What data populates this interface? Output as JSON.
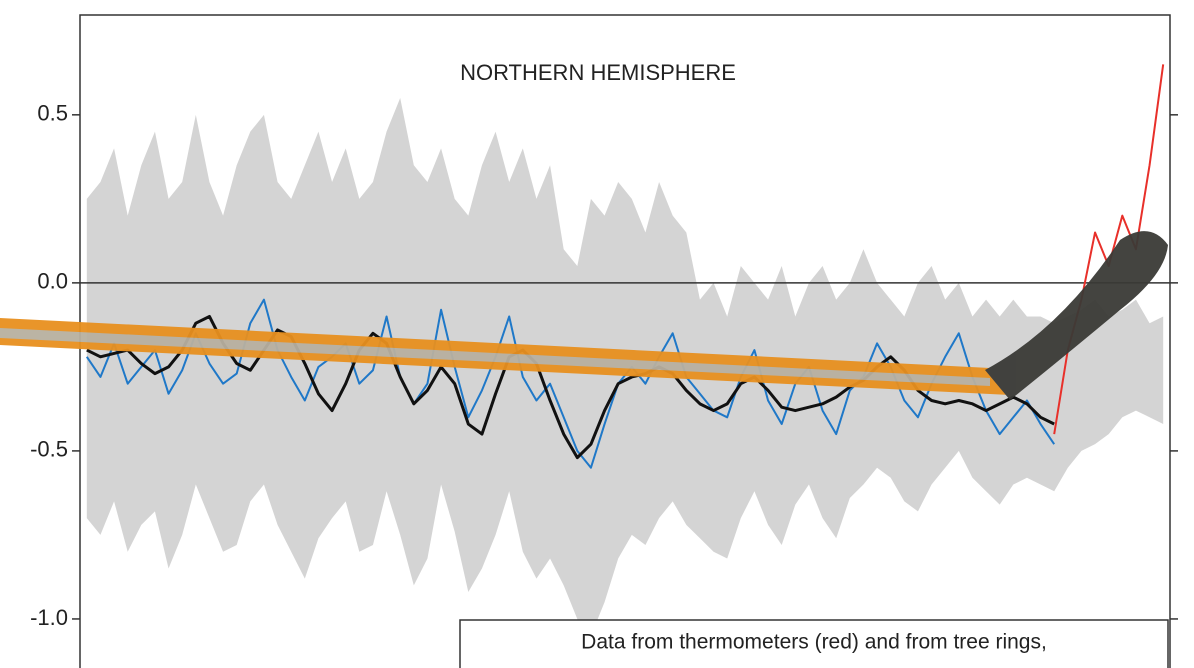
{
  "chart_data": {
    "type": "line",
    "title": "NORTHERN HEMISPHERE",
    "annotation": "Data from thermometers (red) and from tree rings,",
    "categories": [
      null,
      null,
      null,
      null,
      null,
      null,
      null,
      null,
      null,
      null,
      null,
      null,
      null,
      null,
      null,
      null,
      null,
      null,
      null,
      null,
      null,
      null,
      null,
      null,
      null,
      null,
      null,
      null,
      null,
      null,
      null,
      null,
      null,
      null,
      null,
      null,
      null,
      null,
      null,
      null,
      null,
      null,
      null,
      null,
      null,
      null,
      null,
      null,
      null,
      null,
      null,
      null,
      null,
      null,
      null,
      null,
      null,
      null,
      null,
      null,
      null,
      null,
      null,
      null,
      null,
      null,
      null,
      null,
      null,
      null,
      null,
      null,
      null,
      null,
      null,
      null,
      null,
      null,
      null,
      null
    ],
    "band": {
      "color": "#d4d4d4",
      "upper": [
        0.25,
        0.3,
        0.4,
        0.2,
        0.35,
        0.45,
        0.25,
        0.3,
        0.5,
        0.3,
        0.2,
        0.35,
        0.45,
        0.5,
        0.3,
        0.25,
        0.35,
        0.45,
        0.3,
        0.4,
        0.25,
        0.3,
        0.45,
        0.55,
        0.35,
        0.3,
        0.4,
        0.25,
        0.2,
        0.35,
        0.45,
        0.3,
        0.4,
        0.25,
        0.35,
        0.1,
        0.05,
        0.25,
        0.2,
        0.3,
        0.25,
        0.15,
        0.3,
        0.2,
        0.15,
        -0.05,
        0.0,
        -0.1,
        0.05,
        0.0,
        -0.05,
        0.05,
        -0.1,
        0.0,
        0.05,
        -0.05,
        0.0,
        0.1,
        0.0,
        -0.05,
        -0.1,
        0.0,
        0.05,
        -0.05,
        0.0,
        -0.1,
        -0.05,
        -0.1,
        -0.05,
        -0.1,
        -0.1,
        -0.12,
        -0.1,
        -0.08,
        -0.05,
        -0.1,
        -0.08,
        -0.05,
        -0.12,
        -0.1
      ],
      "lower": [
        -0.7,
        -0.75,
        -0.65,
        -0.8,
        -0.72,
        -0.68,
        -0.85,
        -0.75,
        -0.6,
        -0.7,
        -0.8,
        -0.78,
        -0.65,
        -0.6,
        -0.72,
        -0.8,
        -0.88,
        -0.76,
        -0.7,
        -0.65,
        -0.8,
        -0.78,
        -0.62,
        -0.75,
        -0.9,
        -0.82,
        -0.6,
        -0.74,
        -0.92,
        -0.85,
        -0.75,
        -0.62,
        -0.8,
        -0.88,
        -0.82,
        -0.9,
        -1.0,
        -1.05,
        -0.95,
        -0.82,
        -0.75,
        -0.78,
        -0.7,
        -0.65,
        -0.72,
        -0.76,
        -0.8,
        -0.82,
        -0.7,
        -0.62,
        -0.72,
        -0.78,
        -0.66,
        -0.6,
        -0.7,
        -0.76,
        -0.64,
        -0.6,
        -0.55,
        -0.58,
        -0.65,
        -0.68,
        -0.6,
        -0.55,
        -0.5,
        -0.58,
        -0.62,
        -0.66,
        -0.6,
        -0.58,
        -0.6,
        -0.62,
        -0.55,
        -0.5,
        -0.48,
        -0.45,
        -0.4,
        -0.38,
        -0.4,
        -0.42
      ]
    },
    "series": [
      {
        "color": "#1f78c8",
        "width": 2,
        "values": [
          -0.22,
          -0.28,
          -0.18,
          -0.3,
          -0.25,
          -0.2,
          -0.33,
          -0.26,
          -0.15,
          -0.24,
          -0.3,
          -0.27,
          -0.12,
          -0.05,
          -0.2,
          -0.28,
          -0.35,
          -0.25,
          -0.22,
          -0.18,
          -0.3,
          -0.26,
          -0.1,
          -0.28,
          -0.36,
          -0.3,
          -0.08,
          -0.25,
          -0.4,
          -0.32,
          -0.22,
          -0.1,
          -0.28,
          -0.35,
          -0.3,
          -0.4,
          -0.5,
          -0.55,
          -0.42,
          -0.3,
          -0.25,
          -0.3,
          -0.22,
          -0.15,
          -0.28,
          -0.33,
          -0.38,
          -0.4,
          -0.28,
          -0.2,
          -0.35,
          -0.42,
          -0.3,
          -0.25,
          -0.38,
          -0.45,
          -0.32,
          -0.28,
          -0.18,
          -0.25,
          -0.35,
          -0.4,
          -0.3,
          -0.22,
          -0.15,
          -0.28,
          -0.38,
          -0.45,
          -0.4,
          -0.35,
          -0.42,
          -0.48,
          null,
          null,
          null,
          null,
          null,
          null,
          null,
          null
        ]
      },
      {
        "color": "#e8302a",
        "width": 2,
        "values": [
          null,
          null,
          null,
          null,
          null,
          null,
          null,
          null,
          null,
          null,
          null,
          null,
          null,
          null,
          null,
          null,
          null,
          null,
          null,
          null,
          null,
          null,
          null,
          null,
          null,
          null,
          null,
          null,
          null,
          null,
          null,
          null,
          null,
          null,
          null,
          null,
          null,
          null,
          null,
          null,
          null,
          null,
          null,
          null,
          null,
          null,
          null,
          null,
          null,
          null,
          null,
          null,
          null,
          null,
          null,
          null,
          null,
          null,
          null,
          null,
          null,
          null,
          null,
          null,
          null,
          null,
          null,
          null,
          null,
          null,
          null,
          -0.45,
          -0.2,
          -0.05,
          0.15,
          0.05,
          0.2,
          0.1,
          0.35,
          0.65
        ]
      },
      {
        "color": "#111111",
        "width": 3,
        "values": [
          -0.2,
          -0.22,
          -0.21,
          -0.2,
          -0.24,
          -0.27,
          -0.25,
          -0.2,
          -0.12,
          -0.1,
          -0.18,
          -0.24,
          -0.26,
          -0.2,
          -0.14,
          -0.16,
          -0.24,
          -0.33,
          -0.38,
          -0.3,
          -0.2,
          -0.15,
          -0.18,
          -0.28,
          -0.36,
          -0.32,
          -0.25,
          -0.3,
          -0.42,
          -0.45,
          -0.33,
          -0.22,
          -0.2,
          -0.24,
          -0.35,
          -0.45,
          -0.52,
          -0.48,
          -0.38,
          -0.3,
          -0.28,
          -0.27,
          -0.25,
          -0.27,
          -0.32,
          -0.36,
          -0.38,
          -0.36,
          -0.3,
          -0.28,
          -0.32,
          -0.37,
          -0.38,
          -0.37,
          -0.36,
          -0.34,
          -0.31,
          -0.29,
          -0.25,
          -0.22,
          -0.26,
          -0.32,
          -0.35,
          -0.36,
          -0.35,
          -0.36,
          -0.38,
          -0.36,
          -0.34,
          -0.36,
          -0.4,
          -0.42,
          null,
          null,
          null,
          null,
          null,
          null,
          null,
          null
        ]
      }
    ],
    "ylim": [
      -1.14,
      0.8
    ],
    "yticks": [
      {
        "value": 0.5,
        "label": "0.5"
      },
      {
        "value": 0,
        "label": "0.0"
      },
      {
        "value": -0.5,
        "label": "-0.5"
      },
      {
        "value": -1,
        "label": "-1.0"
      }
    ]
  }
}
